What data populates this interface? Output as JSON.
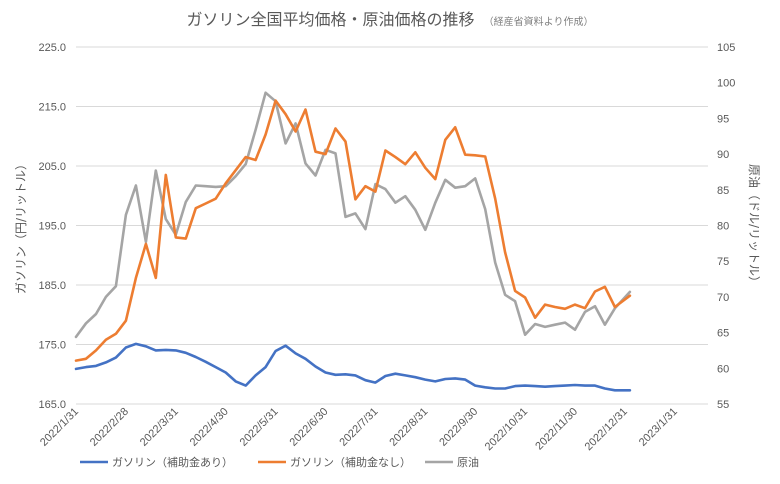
{
  "chart_data": {
    "type": "line",
    "title": "ガソリン全国平均価格・原油価格の推移",
    "title_note": "（経産省資料より作成）",
    "ylabel_left": "ガソリン（円/リットル）",
    "ylabel_right": "原油（ドル/リットル）",
    "ylim_left": [
      165.0,
      225.0
    ],
    "yticks_left": [
      "225.0",
      "215.0",
      "205.0",
      "195.0",
      "185.0",
      "175.0",
      "165.0"
    ],
    "ylim_right": [
      55,
      105
    ],
    "yticks_right": [
      "105",
      "100",
      "95",
      "90",
      "85",
      "80",
      "75",
      "70",
      "65",
      "60",
      "55"
    ],
    "x_tick_labels": [
      "2022/1/31",
      "2022/2/28",
      "2022/3/31",
      "2022/4/30",
      "2022/5/31",
      "2022/6/30",
      "2022/7/31",
      "2022/8/31",
      "2022/9/30",
      "2022/10/31",
      "2022/11/30",
      "2022/12/31",
      "2023/1/31"
    ],
    "grid": true,
    "legend_position": "bottom",
    "series": [
      {
        "name": "ガソリン（補助金あり）",
        "axis": "left",
        "color": "#4472c4",
        "points": [
          [
            0,
            170.9
          ],
          [
            0.2,
            171.2
          ],
          [
            0.4,
            171.4
          ],
          [
            0.6,
            172.0
          ],
          [
            0.8,
            172.8
          ],
          [
            1.0,
            174.5
          ],
          [
            1.2,
            175.1
          ],
          [
            1.4,
            174.7
          ],
          [
            1.6,
            174.0
          ],
          [
            1.8,
            174.1
          ],
          [
            2.0,
            174.0
          ],
          [
            2.2,
            173.6
          ],
          [
            2.4,
            172.9
          ],
          [
            2.6,
            172.1
          ],
          [
            2.8,
            171.2
          ],
          [
            3.0,
            170.3
          ],
          [
            3.2,
            168.8
          ],
          [
            3.4,
            168.1
          ],
          [
            3.6,
            169.8
          ],
          [
            3.8,
            171.2
          ],
          [
            4.0,
            173.9
          ],
          [
            4.2,
            174.8
          ],
          [
            4.4,
            173.5
          ],
          [
            4.6,
            172.6
          ],
          [
            4.8,
            171.3
          ],
          [
            5.0,
            170.3
          ],
          [
            5.2,
            169.9
          ],
          [
            5.4,
            170.0
          ],
          [
            5.6,
            169.8
          ],
          [
            5.8,
            169.0
          ],
          [
            6.0,
            168.6
          ],
          [
            6.2,
            169.7
          ],
          [
            6.4,
            170.1
          ],
          [
            6.6,
            169.8
          ],
          [
            6.8,
            169.5
          ],
          [
            7.0,
            169.1
          ],
          [
            7.2,
            168.8
          ],
          [
            7.4,
            169.2
          ],
          [
            7.6,
            169.3
          ],
          [
            7.8,
            169.1
          ],
          [
            8.0,
            168.1
          ],
          [
            8.2,
            167.8
          ],
          [
            8.4,
            167.6
          ],
          [
            8.6,
            167.6
          ],
          [
            8.8,
            168.0
          ],
          [
            9.0,
            168.1
          ],
          [
            9.2,
            168.0
          ],
          [
            9.4,
            167.9
          ],
          [
            9.6,
            168.0
          ],
          [
            9.8,
            168.1
          ],
          [
            10.0,
            168.2
          ],
          [
            10.2,
            168.1
          ],
          [
            10.4,
            168.1
          ],
          [
            10.6,
            167.6
          ],
          [
            10.8,
            167.3
          ],
          [
            11.1,
            167.3
          ]
        ]
      },
      {
        "name": "ガソリン（補助金なし）",
        "axis": "left",
        "color": "#ed7d31",
        "points": [
          [
            0,
            172.3
          ],
          [
            0.2,
            172.6
          ],
          [
            0.4,
            174.0
          ],
          [
            0.6,
            175.8
          ],
          [
            0.8,
            176.8
          ],
          [
            1.0,
            179.0
          ],
          [
            1.2,
            186.2
          ],
          [
            1.4,
            191.9
          ],
          [
            1.6,
            186.2
          ],
          [
            1.8,
            203.5
          ],
          [
            2.0,
            193.0
          ],
          [
            2.2,
            192.8
          ],
          [
            2.4,
            197.9
          ],
          [
            2.6,
            198.7
          ],
          [
            2.8,
            199.5
          ],
          [
            3.0,
            202.1
          ],
          [
            3.2,
            204.3
          ],
          [
            3.4,
            206.5
          ],
          [
            3.6,
            206.0
          ],
          [
            3.8,
            210.3
          ],
          [
            4.0,
            216.0
          ],
          [
            4.2,
            213.7
          ],
          [
            4.4,
            210.8
          ],
          [
            4.6,
            214.5
          ],
          [
            4.8,
            207.4
          ],
          [
            5.0,
            207.0
          ],
          [
            5.2,
            211.3
          ],
          [
            5.4,
            209.1
          ],
          [
            5.6,
            199.4
          ],
          [
            5.8,
            201.6
          ],
          [
            6.0,
            200.7
          ],
          [
            6.2,
            207.6
          ],
          [
            6.4,
            206.5
          ],
          [
            6.6,
            205.3
          ],
          [
            6.8,
            207.3
          ],
          [
            7.0,
            204.7
          ],
          [
            7.2,
            202.8
          ],
          [
            7.4,
            209.4
          ],
          [
            7.6,
            211.5
          ],
          [
            7.8,
            206.9
          ],
          [
            8.0,
            206.8
          ],
          [
            8.2,
            206.6
          ],
          [
            8.4,
            199.5
          ],
          [
            8.6,
            190.5
          ],
          [
            8.8,
            184.0
          ],
          [
            9.0,
            182.9
          ],
          [
            9.2,
            179.5
          ],
          [
            9.4,
            181.7
          ],
          [
            9.6,
            181.3
          ],
          [
            9.8,
            181.0
          ],
          [
            10.0,
            181.7
          ],
          [
            10.2,
            181.1
          ],
          [
            10.4,
            183.9
          ],
          [
            10.6,
            184.7
          ],
          [
            10.8,
            181.3
          ],
          [
            11.1,
            183.2
          ]
        ]
      },
      {
        "name": "原油",
        "axis": "right",
        "color": "#a5a5a5",
        "points": [
          [
            0,
            64.4
          ],
          [
            0.2,
            66.3
          ],
          [
            0.4,
            67.6
          ],
          [
            0.6,
            70.0
          ],
          [
            0.8,
            71.5
          ],
          [
            1.0,
            81.5
          ],
          [
            1.2,
            85.6
          ],
          [
            1.4,
            77.7
          ],
          [
            1.6,
            87.7
          ],
          [
            1.8,
            80.9
          ],
          [
            2.0,
            78.7
          ],
          [
            2.2,
            83.3
          ],
          [
            2.4,
            85.6
          ],
          [
            2.6,
            85.5
          ],
          [
            2.8,
            85.4
          ],
          [
            3.0,
            85.5
          ],
          [
            3.2,
            86.9
          ],
          [
            3.4,
            88.6
          ],
          [
            3.6,
            93.4
          ],
          [
            3.8,
            98.6
          ],
          [
            4.0,
            97.4
          ],
          [
            4.2,
            91.5
          ],
          [
            4.4,
            94.3
          ],
          [
            4.6,
            88.7
          ],
          [
            4.8,
            87.0
          ],
          [
            5.0,
            90.6
          ],
          [
            5.2,
            90.1
          ],
          [
            5.4,
            81.2
          ],
          [
            5.6,
            81.7
          ],
          [
            5.8,
            79.5
          ],
          [
            6.0,
            85.8
          ],
          [
            6.2,
            85.1
          ],
          [
            6.4,
            83.2
          ],
          [
            6.6,
            84.1
          ],
          [
            6.8,
            82.2
          ],
          [
            7.0,
            79.4
          ],
          [
            7.2,
            83.2
          ],
          [
            7.4,
            86.4
          ],
          [
            7.6,
            85.3
          ],
          [
            7.8,
            85.5
          ],
          [
            8.0,
            86.6
          ],
          [
            8.2,
            82.3
          ],
          [
            8.4,
            74.8
          ],
          [
            8.6,
            70.3
          ],
          [
            8.8,
            69.4
          ],
          [
            9.0,
            64.7
          ],
          [
            9.2,
            66.2
          ],
          [
            9.4,
            65.8
          ],
          [
            9.6,
            66.1
          ],
          [
            9.8,
            66.4
          ],
          [
            10.0,
            65.4
          ],
          [
            10.2,
            67.9
          ],
          [
            10.4,
            68.7
          ],
          [
            10.6,
            66.1
          ],
          [
            10.8,
            68.4
          ],
          [
            11.1,
            70.7
          ]
        ]
      }
    ]
  }
}
